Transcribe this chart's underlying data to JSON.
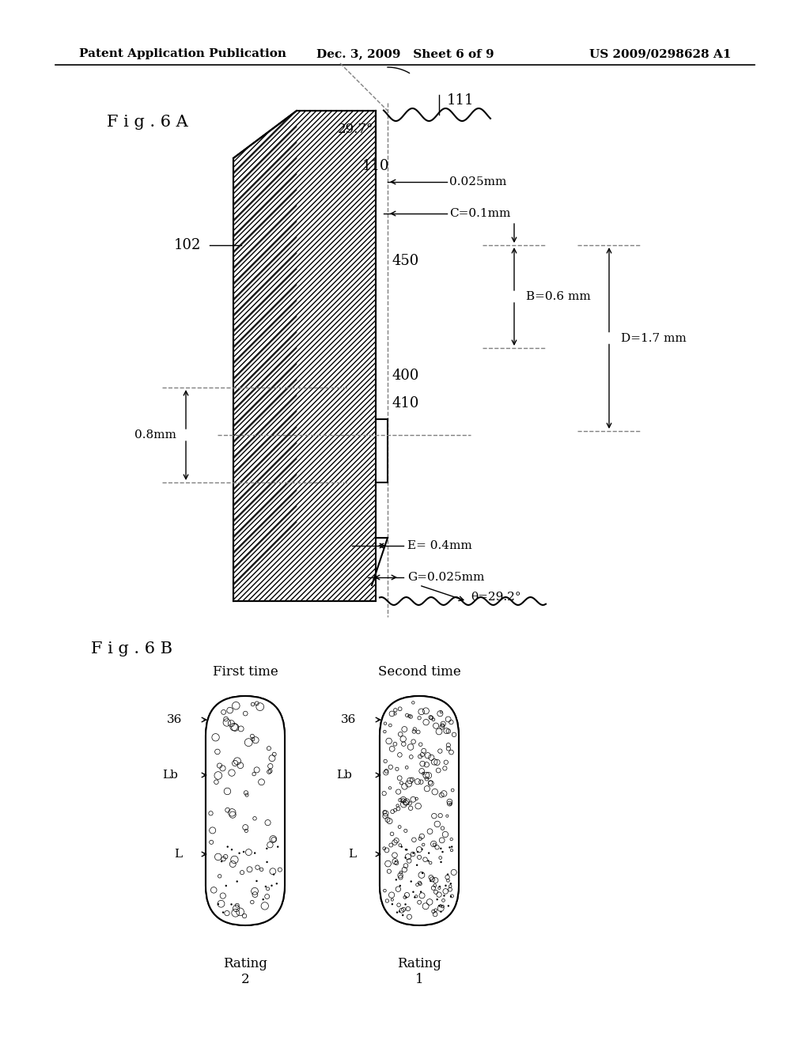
{
  "title_left": "Patent Application Publication",
  "title_center": "Dec. 3, 2009   Sheet 6 of 9",
  "title_right": "US 2009/0298628 A1",
  "fig6a_label": "F i g . 6 A",
  "fig6b_label": "F i g . 6 B",
  "labels": {
    "110": "110",
    "111": "111",
    "102": "102",
    "450": "450",
    "400": "400",
    "410": "410",
    "36": "36",
    "Lb": "Lb",
    "L": "L"
  },
  "dims": {
    "angle_top": "29.7°",
    "dim_025": "0.025mm",
    "dim_C": "C=0.1mm",
    "dim_B": "B=0.6 mm",
    "dim_D": "D=1.7 mm",
    "dim_08": "0.8mm",
    "dim_E": "E= 0.4mm",
    "dim_theta": "θ=29.2°",
    "dim_G": "G=0.025mm"
  },
  "fig6b_titles": [
    "First time",
    "Second time"
  ],
  "fig6b_ratings": [
    "Rating\n2",
    "Rating\n1"
  ],
  "bg_color": "#ffffff",
  "line_color": "#000000",
  "hatch_color": "#000000"
}
